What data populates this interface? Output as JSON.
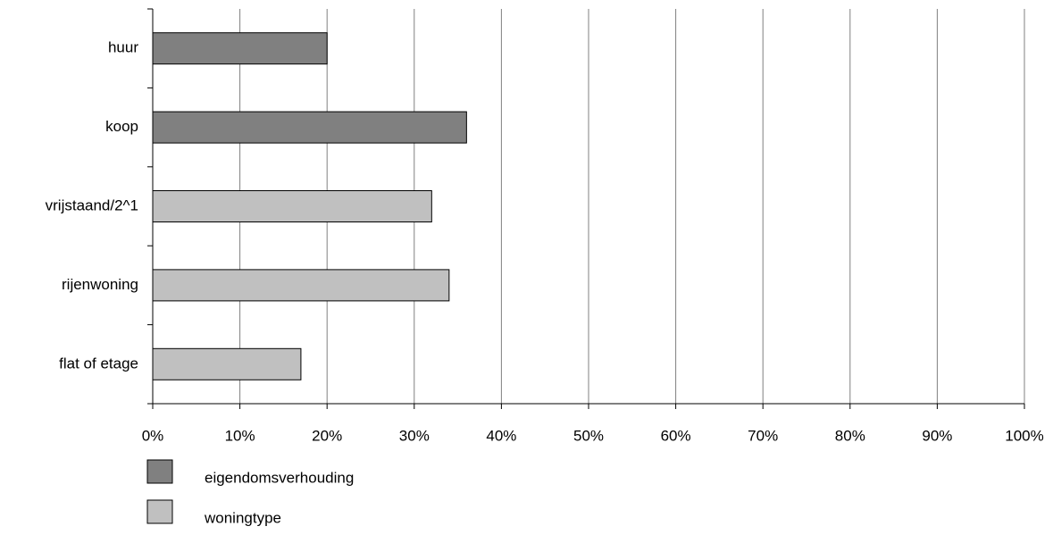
{
  "chart_data": {
    "type": "hbar",
    "categories": [
      "huur",
      "koop",
      "vrijstaand/2^1",
      "rijenwoning",
      "flat of etage"
    ],
    "series": [
      {
        "name": "eigendomsverhouding",
        "color": "#808080",
        "values": [
          20,
          36,
          null,
          null,
          null
        ]
      },
      {
        "name": "woningtype",
        "color": "#c0c0c0",
        "values": [
          null,
          null,
          32,
          34,
          17
        ]
      }
    ],
    "xlim": [
      0,
      100
    ],
    "xticks": [
      {
        "value": 0,
        "label": "0%"
      },
      {
        "value": 10,
        "label": "10%"
      },
      {
        "value": 20,
        "label": "20%"
      },
      {
        "value": 30,
        "label": "30%"
      },
      {
        "value": 40,
        "label": "40%"
      },
      {
        "value": 50,
        "label": "50%"
      },
      {
        "value": 60,
        "label": "60%"
      },
      {
        "value": 70,
        "label": "70%"
      },
      {
        "value": 80,
        "label": "80%"
      },
      {
        "value": 90,
        "label": "90%"
      },
      {
        "value": 100,
        "label": "100%"
      }
    ],
    "grid": true,
    "legend": "bottom-left"
  }
}
